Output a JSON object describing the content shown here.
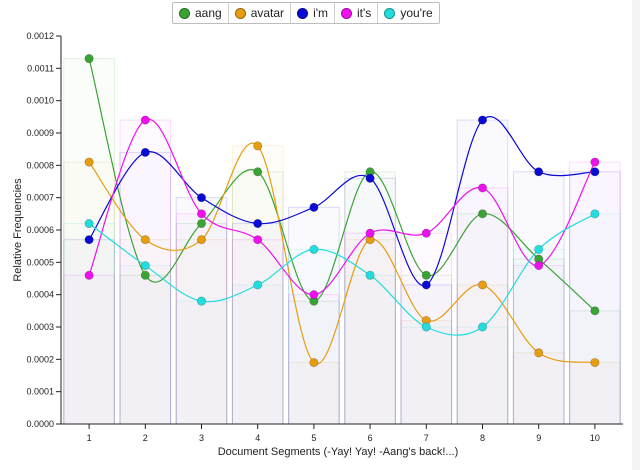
{
  "chart_data": {
    "type": "line",
    "xlabel": "Document Segments (-Yay! Yay! -Aang's back!...)",
    "ylabel": "Relative Frequencies",
    "x": [
      1,
      2,
      3,
      4,
      5,
      6,
      7,
      8,
      9,
      10
    ],
    "x_ticks": [
      "1",
      "2",
      "3",
      "4",
      "5",
      "6",
      "7",
      "8",
      "9",
      "10"
    ],
    "ylim": [
      0,
      0.0012
    ],
    "y_ticks": [
      "0.0000",
      "0.0001",
      "0.0002",
      "0.0003",
      "0.0004",
      "0.0005",
      "0.0006",
      "0.0007",
      "0.0008",
      "0.0009",
      "0.0010",
      "0.0011",
      "0.0012"
    ],
    "grid": false,
    "legend": "top-center",
    "series": [
      {
        "name": "aang",
        "color": "#3aa335",
        "values": [
          0.00113,
          0.00046,
          0.00062,
          0.00078,
          0.00038,
          0.00078,
          0.00046,
          0.00065,
          0.00051,
          0.00035
        ]
      },
      {
        "name": "avatar",
        "color": "#e69d0f",
        "values": [
          0.00081,
          0.00057,
          0.00057,
          0.00086,
          0.00019,
          0.00057,
          0.00032,
          0.00043,
          0.00022,
          0.00019
        ]
      },
      {
        "name": "i'm",
        "color": "#0a0ad6",
        "values": [
          0.00057,
          0.00084,
          0.0007,
          0.00062,
          0.00067,
          0.00076,
          0.00043,
          0.00094,
          0.00078,
          0.00078
        ]
      },
      {
        "name": "it's",
        "color": "#ee11ee",
        "values": [
          0.00046,
          0.00094,
          0.00065,
          0.00057,
          0.0004,
          0.00059,
          0.00059,
          0.00073,
          0.00049,
          0.00081
        ]
      },
      {
        "name": "you're",
        "color": "#22dddd",
        "values": [
          0.00062,
          0.00049,
          0.00038,
          0.00043,
          0.00054,
          0.00046,
          0.0003,
          0.0003,
          0.00054,
          0.00065
        ]
      }
    ]
  }
}
